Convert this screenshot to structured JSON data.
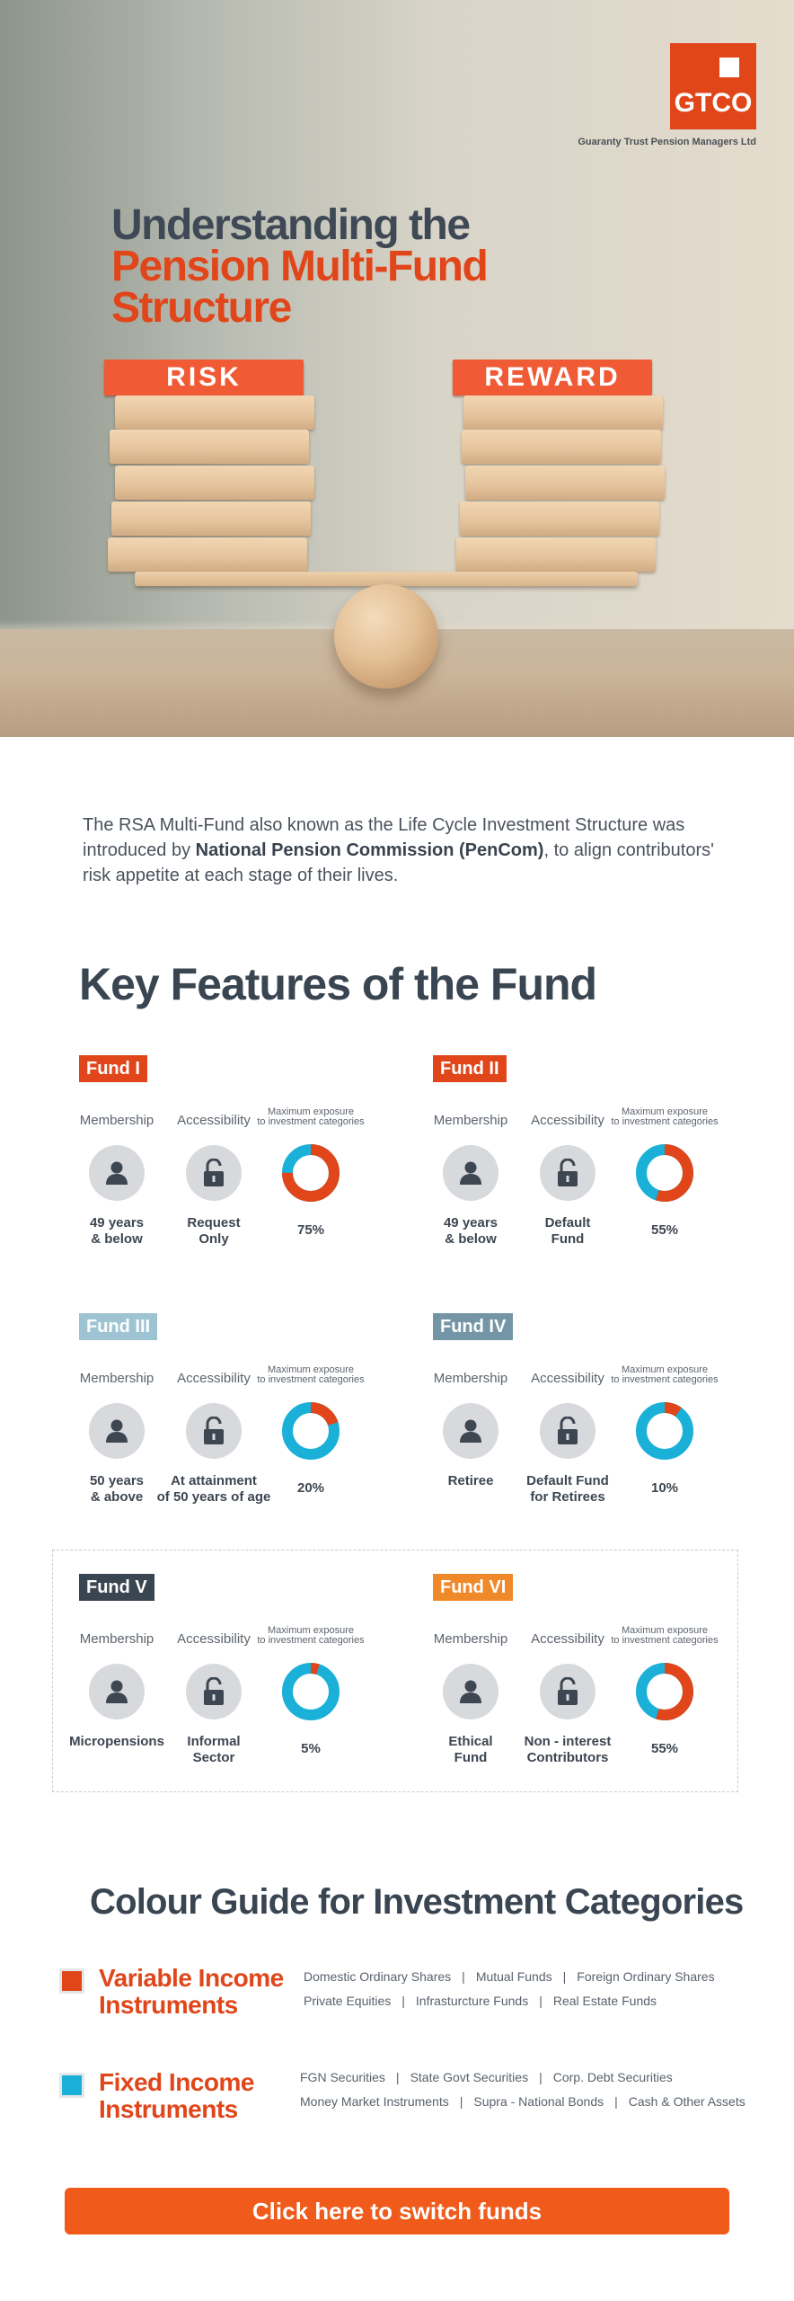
{
  "hero": {
    "logo_text": "GTCO",
    "logo_subtitle": "Guaranty Trust Pension Managers Ltd",
    "title_line1": "Understanding the",
    "title_line2": "Pension Multi-Fund",
    "title_line3": "Structure",
    "sign_left": "RISK",
    "sign_right": "REWARD"
  },
  "intro": {
    "text_before": "The RSA Multi-Fund also known as the Life Cycle Investment Structure was introduced by ",
    "bold": "National Pension Commission (PenCom)",
    "text_after": ", to align contributors' risk appetite at each stage of their lives."
  },
  "features": {
    "title": "Key Features of the Fund",
    "col_membership": "Membership",
    "col_accessibility": "Accessibility",
    "col_exposure_line1": "Maximum exposure",
    "col_exposure_line2": "to investment categories",
    "funds": [
      {
        "name": "Fund I",
        "tag_color": "#e0461a",
        "membership": [
          "49 years",
          "& below"
        ],
        "accessibility": [
          "Request",
          "Only"
        ],
        "exposure": "75%",
        "variable_fraction": 0.75
      },
      {
        "name": "Fund II",
        "tag_color": "#e0461a",
        "membership": [
          "49 years",
          "& below"
        ],
        "accessibility": [
          "Default",
          "Fund"
        ],
        "exposure": "55%",
        "variable_fraction": 0.55
      },
      {
        "name": "Fund III",
        "tag_color": "#9ec3d3",
        "membership": [
          "50 years",
          "& above"
        ],
        "accessibility": [
          "At attainment",
          "of 50 years of age"
        ],
        "exposure": "20%",
        "variable_fraction": 0.2
      },
      {
        "name": "Fund IV",
        "tag_color": "#7495a5",
        "membership": [
          "Retiree"
        ],
        "accessibility": [
          "Default Fund",
          "for Retirees"
        ],
        "exposure": "10%",
        "variable_fraction": 0.1
      },
      {
        "name": "Fund V",
        "tag_color": "#3a4552",
        "membership": [
          "Micropensions"
        ],
        "accessibility": [
          "Informal",
          "Sector"
        ],
        "exposure": "5%",
        "variable_fraction": 0.05
      },
      {
        "name": "Fund VI",
        "tag_color": "#f0892a",
        "membership": [
          "Ethical",
          "Fund"
        ],
        "accessibility": [
          "Non - interest",
          "Contributors"
        ],
        "exposure": "55%",
        "variable_fraction": 0.55
      }
    ]
  },
  "colours": {
    "variable": "#e0461a",
    "fixed": "#1ab0d8"
  },
  "guide": {
    "title": "Colour Guide for Investment Categories",
    "variable": {
      "title_line1": "Variable Income",
      "title_line2": "Instruments",
      "row1": [
        "Domestic Ordinary Shares",
        "Mutual Funds",
        "Foreign Ordinary Shares"
      ],
      "row2": [
        "Private Equities",
        "Infrasturcture Funds",
        "Real Estate Funds"
      ]
    },
    "fixed": {
      "title_line1": "Fixed Income",
      "title_line2": "Instruments",
      "row1": [
        "FGN Securities",
        "State Govt Securities",
        "Corp. Debt Securities"
      ],
      "row2": [
        "Money Market Instruments",
        "Supra - National Bonds",
        "Cash & Other Assets"
      ]
    }
  },
  "cta": {
    "label": "Click here to switch funds"
  }
}
